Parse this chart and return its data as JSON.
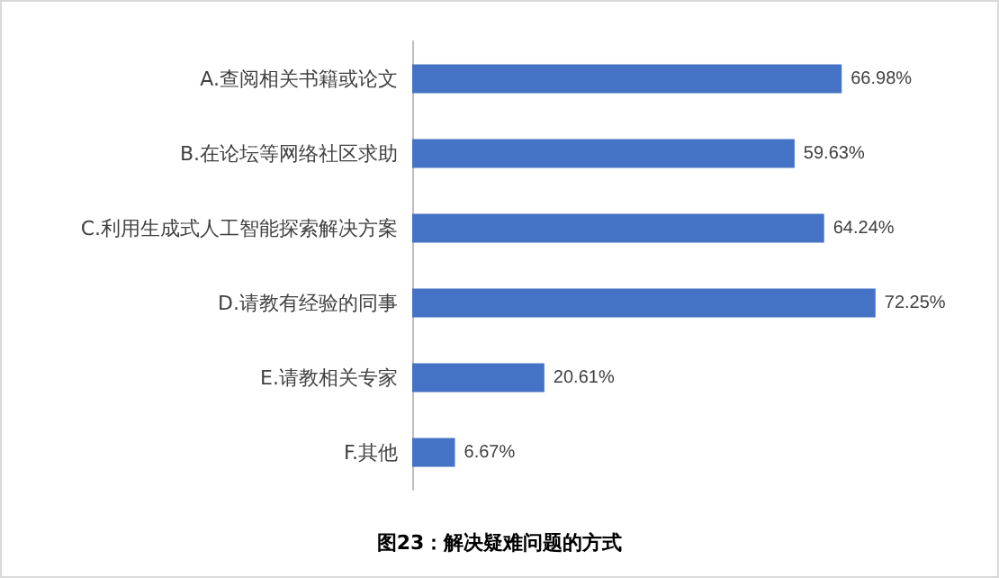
{
  "chart_data": {
    "type": "bar",
    "orientation": "horizontal",
    "title": "图23：解决疑难问题的方式",
    "categories": [
      "A.查阅相关书籍或论文",
      "B.在论坛等网络社区求助",
      "C.利用生成式人工智能探索解决方案",
      "D.请教有经验的同事",
      "E.请教相关专家",
      "F.其他"
    ],
    "values": [
      66.98,
      59.63,
      64.24,
      72.25,
      20.61,
      6.67
    ],
    "value_labels": [
      "66.98%",
      "59.63%",
      "64.24%",
      "72.25%",
      "20.61%",
      "6.67%"
    ],
    "color": "#4472c4"
  }
}
